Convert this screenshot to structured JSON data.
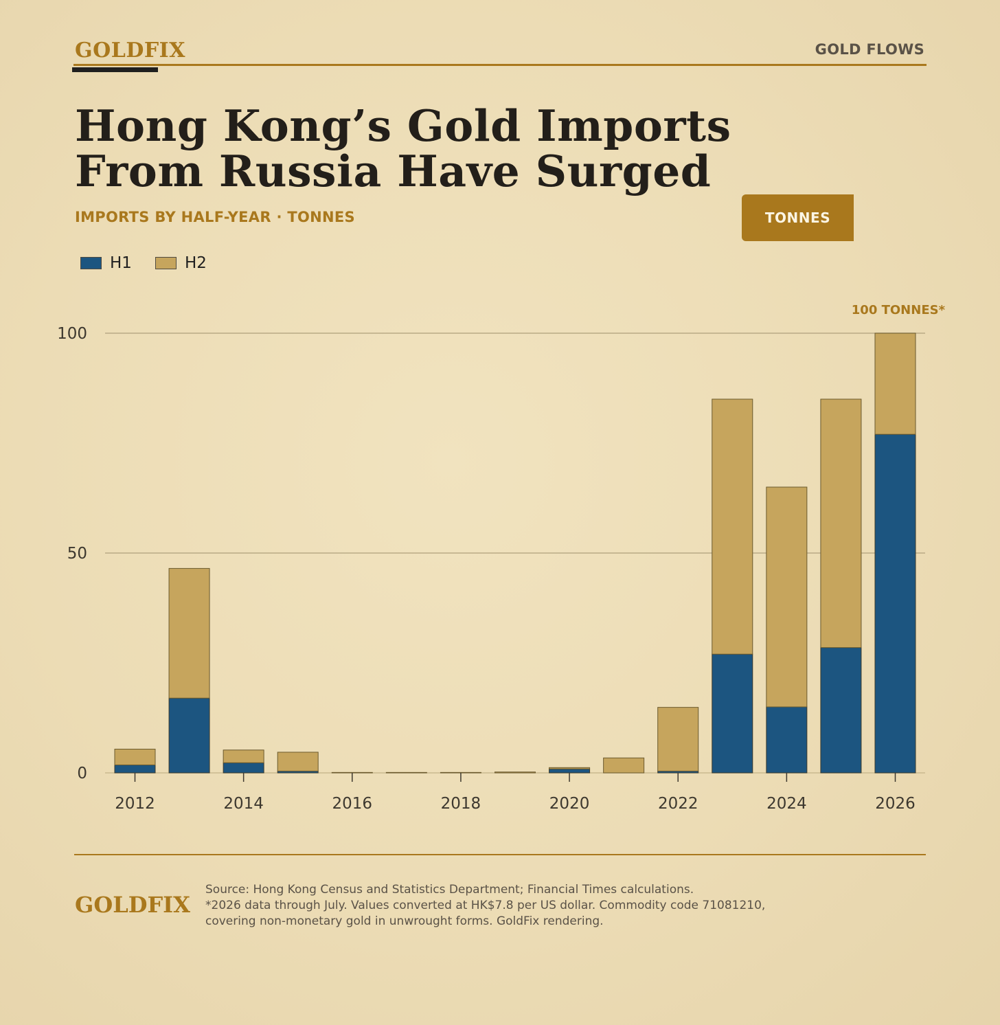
{
  "header": {
    "brand": "GOLDFIX",
    "section": "GOLD FLOWS"
  },
  "title": {
    "line1": "Hong Kong’s Gold Imports",
    "line2": "From Russia Have Surged"
  },
  "subtitle": "IMPORTS BY HALF-YEAR  ·  TONNES",
  "unit_button": "TONNES",
  "legend": {
    "h1": "H1",
    "h2": "H2"
  },
  "colors": {
    "accent": "#a9781d",
    "h1": "#1c5580",
    "h2": "#c6a55d"
  },
  "chart_data": {
    "type": "bar",
    "stacked": true,
    "title": "Hong Kong’s Gold Imports From Russia Have Surged",
    "subtitle": "IMPORTS BY HALF-YEAR · TONNES",
    "annotation": "100 TONNES*",
    "x": [
      2012,
      2013,
      2014,
      2015,
      2016,
      2017,
      2018,
      2019,
      2020,
      2021,
      2022,
      2023,
      2024,
      2025,
      2026
    ],
    "x_tick_labels": [
      "2012",
      "2014",
      "2016",
      "2018",
      "2020",
      "2022",
      "2024",
      "2026"
    ],
    "series": [
      {
        "name": "H1",
        "values": [
          1.8,
          17,
          2.3,
          0.4,
          0,
          0,
          0,
          0,
          0.9,
          0,
          0.4,
          27,
          15,
          28.5,
          77
        ]
      },
      {
        "name": "H2",
        "values": [
          3.6,
          29.5,
          2.9,
          4.3,
          0.1,
          0.1,
          0.1,
          0.2,
          0.3,
          3.4,
          14.5,
          58,
          50,
          56.5,
          23
        ]
      }
    ],
    "ylim": [
      0,
      100
    ],
    "y_ticks": [
      0,
      50,
      100
    ],
    "xlabel": "",
    "ylabel": "",
    "grid": true,
    "legend_position": "top-left"
  },
  "footer": {
    "brand": "GOLDFIX",
    "source_line1": "Source: Hong Kong Census and Statistics Department; Financial Times calculations.",
    "source_line2": "*2026 data through July. Values converted at HK$7.8 per US dollar. Commodity code 71081210,",
    "source_line3": "covering non-monetary gold in unwrought forms. GoldFix rendering."
  }
}
